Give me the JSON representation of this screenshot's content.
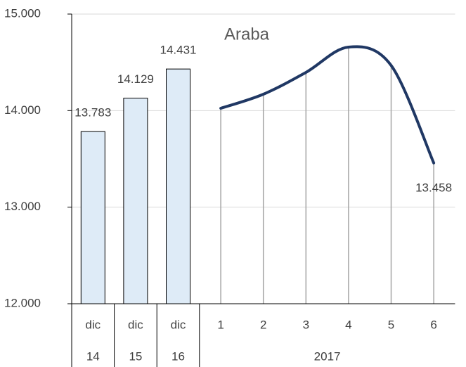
{
  "chart_data": {
    "type": "bar-line",
    "title": "Araba",
    "categories": [
      "dic",
      "dic",
      "dic",
      "1",
      "2",
      "3",
      "4",
      "5",
      "6"
    ],
    "category_groups": [
      {
        "label": "14",
        "size": 1
      },
      {
        "label": "15",
        "size": 1
      },
      {
        "label": "16",
        "size": 1
      },
      {
        "label": "2017",
        "size": 6
      }
    ],
    "series": [
      {
        "type": "bar",
        "color": "#deebf7",
        "values": [
          13783,
          14129,
          14431,
          null,
          null,
          null,
          null,
          null,
          null
        ],
        "value_labels": [
          "13.783",
          "14.129",
          "14.431",
          null,
          null,
          null,
          null,
          null,
          null
        ]
      },
      {
        "type": "line",
        "color": "#203864",
        "values": [
          null,
          null,
          null,
          14024,
          14170,
          14396,
          14658,
          14468,
          13458
        ],
        "value_labels": [
          null,
          null,
          null,
          null,
          null,
          null,
          null,
          null,
          "13.458"
        ],
        "drop_lines": true
      }
    ],
    "ylim": [
      12000,
      15000
    ],
    "yticks": [
      {
        "value": 12000,
        "label": "12.000"
      },
      {
        "value": 13000,
        "label": "13.000"
      },
      {
        "value": 14000,
        "label": "14.000"
      },
      {
        "value": 15000,
        "label": "15.000"
      }
    ],
    "grid": true
  }
}
